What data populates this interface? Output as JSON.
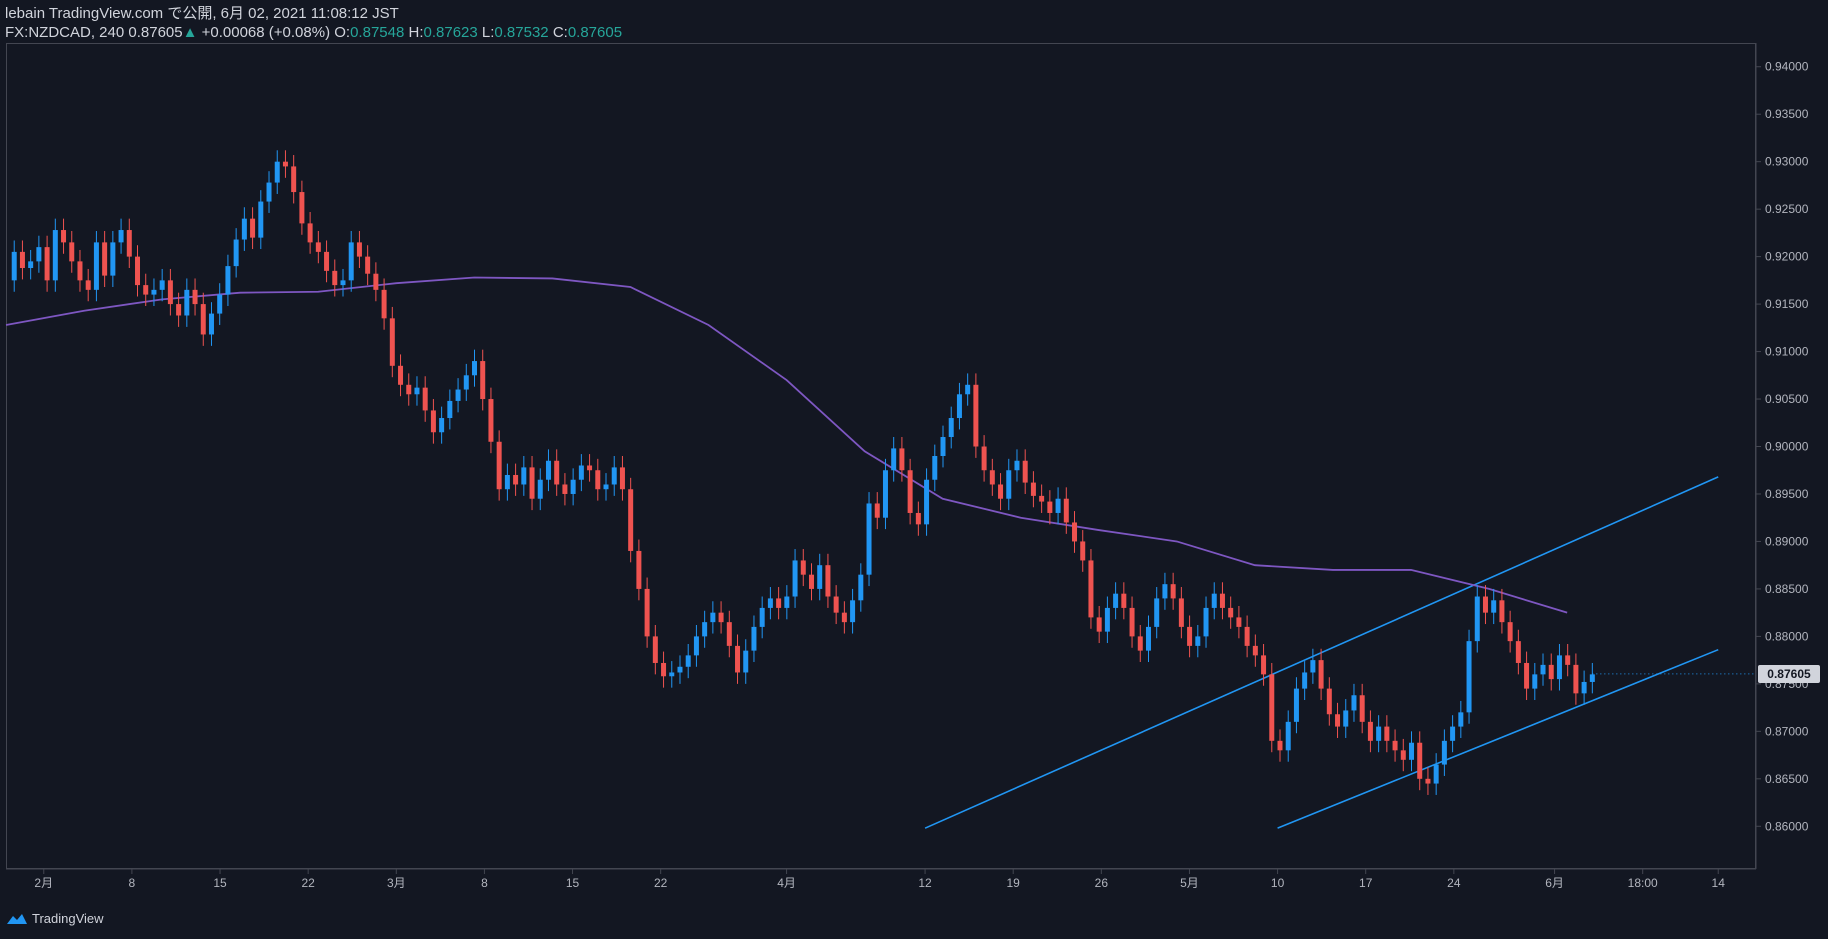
{
  "header": {
    "publisher_line": "lebain TradingView.com で公開, 6月 02, 2021 11:08:12 JST",
    "symbol": "FX:NZDCAD, 240",
    "last": "0.87605",
    "arrow": "▲",
    "change": "+0.00068 (+0.08%)",
    "o_label": "O:",
    "o_value": "0.87548",
    "h_label": "H:",
    "h_value": "0.87623",
    "l_label": "L:",
    "l_value": "0.87532",
    "c_label": "C:",
    "c_value": "0.87605"
  },
  "footer": {
    "brand": "TradingView",
    "icon": "tradingview-logo-icon"
  },
  "colors": {
    "background": "#131722",
    "up": "#2196f3",
    "down": "#ef5350",
    "ma": "#7e57c2",
    "trendline": "#2196f3",
    "axis_text": "#b2b5be",
    "border": "#434651"
  },
  "chart_data": {
    "type": "candlestick",
    "symbol": "FX:NZDCAD",
    "interval": "240",
    "last_price": 0.87605,
    "last_price_label": "0.87605",
    "ylim": [
      0.8555,
      0.9425
    ],
    "y_ticks": [
      "0.86000",
      "0.86500",
      "0.87000",
      "0.87500",
      "0.88000",
      "0.88500",
      "0.89000",
      "0.89500",
      "0.90000",
      "0.90500",
      "0.91000",
      "0.91500",
      "0.92000",
      "0.92500",
      "0.93000",
      "0.93500",
      "0.94000"
    ],
    "x_ticks": [
      {
        "label": "2月",
        "date": "2021-02-01"
      },
      {
        "label": "8",
        "date": "2021-02-08"
      },
      {
        "label": "15",
        "date": "2021-02-15"
      },
      {
        "label": "22",
        "date": "2021-02-22"
      },
      {
        "label": "3月",
        "date": "2021-03-01"
      },
      {
        "label": "8",
        "date": "2021-03-08"
      },
      {
        "label": "15",
        "date": "2021-03-15"
      },
      {
        "label": "22",
        "date": "2021-03-22"
      },
      {
        "label": "4月",
        "date": "2021-04-01"
      },
      {
        "label": "12",
        "date": "2021-04-12"
      },
      {
        "label": "19",
        "date": "2021-04-19"
      },
      {
        "label": "26",
        "date": "2021-04-26"
      },
      {
        "label": "5月",
        "date": "2021-05-03"
      },
      {
        "label": "10",
        "date": "2021-05-10"
      },
      {
        "label": "17",
        "date": "2021-05-17"
      },
      {
        "label": "24",
        "date": "2021-05-24"
      },
      {
        "label": "6月",
        "date": "2021-06-01"
      },
      {
        "label": "18:00",
        "date": "2021-06-08"
      },
      {
        "label": "14",
        "date": "2021-06-14"
      }
    ],
    "price_path": [
      [
        "2021-01-29",
        0.9175
      ],
      [
        "2021-01-30",
        0.9205
      ],
      [
        "2021-01-31",
        0.9188
      ],
      [
        "2021-02-01",
        0.9195
      ],
      [
        "2021-02-02",
        0.921
      ],
      [
        "2021-02-03",
        0.9175
      ],
      [
        "2021-02-04",
        0.9228
      ],
      [
        "2021-02-05",
        0.9215
      ],
      [
        "2021-02-06",
        0.9195
      ],
      [
        "2021-02-07",
        0.9175
      ],
      [
        "2021-02-08",
        0.9165
      ],
      [
        "2021-02-09",
        0.9215
      ],
      [
        "2021-02-10",
        0.918
      ],
      [
        "2021-02-11",
        0.9215
      ],
      [
        "2021-02-12",
        0.9228
      ],
      [
        "2021-02-13",
        0.92
      ],
      [
        "2021-02-14",
        0.917
      ],
      [
        "2021-02-15",
        0.916
      ],
      [
        "2021-02-16",
        0.9165
      ],
      [
        "2021-02-17",
        0.9175
      ],
      [
        "2021-02-18",
        0.915
      ],
      [
        "2021-02-19",
        0.9138
      ],
      [
        "2021-02-20",
        0.9165
      ],
      [
        "2021-02-21",
        0.915
      ],
      [
        "2021-02-22",
        0.9118
      ],
      [
        "2021-02-23",
        0.914
      ],
      [
        "2021-02-24",
        0.916
      ],
      [
        "2021-02-25",
        0.919
      ],
      [
        "2021-02-26",
        0.9218
      ],
      [
        "2021-02-27",
        0.924
      ],
      [
        "2021-02-28",
        0.922
      ],
      [
        "2021-03-01",
        0.9258
      ],
      [
        "2021-03-02",
        0.9278
      ],
      [
        "2021-03-03",
        0.93
      ],
      [
        "2021-03-04",
        0.9295
      ],
      [
        "2021-03-05",
        0.9268
      ],
      [
        "2021-03-06",
        0.9235
      ],
      [
        "2021-03-07",
        0.9215
      ],
      [
        "2021-03-08",
        0.9205
      ],
      [
        "2021-03-09",
        0.9185
      ],
      [
        "2021-03-10",
        0.917
      ],
      [
        "2021-03-11",
        0.9175
      ],
      [
        "2021-03-12",
        0.9215
      ],
      [
        "2021-03-13",
        0.92
      ],
      [
        "2021-03-14",
        0.9182
      ],
      [
        "2021-03-15",
        0.9165
      ],
      [
        "2021-03-16",
        0.9135
      ],
      [
        "2021-03-17",
        0.9085
      ],
      [
        "2021-03-18",
        0.9065
      ],
      [
        "2021-03-19",
        0.9055
      ],
      [
        "2021-03-20",
        0.9062
      ],
      [
        "2021-03-21",
        0.9038
      ],
      [
        "2021-03-22",
        0.9015
      ],
      [
        "2021-03-23",
        0.903
      ],
      [
        "2021-03-24",
        0.9048
      ],
      [
        "2021-03-25",
        0.906
      ],
      [
        "2021-03-26",
        0.9075
      ],
      [
        "2021-03-27",
        0.909
      ],
      [
        "2021-03-28",
        0.905
      ],
      [
        "2021-03-29",
        0.9005
      ],
      [
        "2021-03-30",
        0.8955
      ],
      [
        "2021-03-31",
        0.897
      ],
      [
        "2021-04-01",
        0.896
      ],
      [
        "2021-04-02",
        0.8978
      ],
      [
        "2021-04-03",
        0.8945
      ],
      [
        "2021-04-04",
        0.8965
      ],
      [
        "2021-04-05",
        0.8985
      ],
      [
        "2021-04-06",
        0.896
      ],
      [
        "2021-04-07",
        0.895
      ],
      [
        "2021-04-08",
        0.8965
      ],
      [
        "2021-04-09",
        0.898
      ],
      [
        "2021-04-10",
        0.8975
      ],
      [
        "2021-04-11",
        0.8955
      ],
      [
        "2021-04-12",
        0.896
      ],
      [
        "2021-04-13",
        0.8978
      ],
      [
        "2021-04-14",
        0.8955
      ],
      [
        "2021-04-15",
        0.889
      ],
      [
        "2021-04-16",
        0.885
      ],
      [
        "2021-04-17",
        0.88
      ],
      [
        "2021-04-18",
        0.8772
      ],
      [
        "2021-04-19",
        0.8758
      ],
      [
        "2021-04-20",
        0.8762
      ],
      [
        "2021-04-21",
        0.8768
      ],
      [
        "2021-04-22",
        0.878
      ],
      [
        "2021-04-23",
        0.88
      ],
      [
        "2021-04-24",
        0.8815
      ],
      [
        "2021-04-25",
        0.8825
      ],
      [
        "2021-04-26",
        0.8815
      ],
      [
        "2021-04-27",
        0.879
      ],
      [
        "2021-04-28",
        0.8762
      ],
      [
        "2021-04-29",
        0.8785
      ],
      [
        "2021-04-30",
        0.881
      ],
      [
        "2021-05-01",
        0.883
      ],
      [
        "2021-05-02",
        0.884
      ],
      [
        "2021-05-03",
        0.883
      ],
      [
        "2021-05-04",
        0.8842
      ],
      [
        "2021-05-05",
        0.888
      ],
      [
        "2021-05-06",
        0.8865
      ],
      [
        "2021-05-07",
        0.885
      ],
      [
        "2021-05-08",
        0.8875
      ],
      [
        "2021-05-09",
        0.8842
      ],
      [
        "2021-05-10",
        0.8825
      ],
      [
        "2021-05-11",
        0.8815
      ],
      [
        "2021-05-12",
        0.8838
      ],
      [
        "2021-05-13",
        0.8865
      ],
      [
        "2021-05-14",
        0.894
      ],
      [
        "2021-05-15",
        0.8925
      ],
      [
        "2021-05-16",
        0.8975
      ],
      [
        "2021-05-17",
        0.8998
      ],
      [
        "2021-05-18",
        0.8975
      ],
      [
        "2021-05-19",
        0.893
      ],
      [
        "2021-05-20",
        0.8918
      ],
      [
        "2021-05-21",
        0.8965
      ],
      [
        "2021-05-22",
        0.899
      ],
      [
        "2021-05-23",
        0.901
      ],
      [
        "2021-05-24",
        0.903
      ],
      [
        "2021-05-25",
        0.9055
      ],
      [
        "2021-05-26",
        0.9065
      ],
      [
        "2021-05-27",
        0.9
      ],
      [
        "2021-05-28",
        0.8975
      ],
      [
        "2021-05-29",
        0.896
      ],
      [
        "2021-05-30",
        0.8945
      ],
      [
        "2021-05-31",
        0.8975
      ],
      [
        "2021-06-01",
        0.8985
      ]
    ],
    "price_path_2": [
      [
        "2021-06-01",
        0.8985
      ],
      [
        "2021-06-02",
        0.8962
      ],
      [
        "2021-06-03",
        0.8948
      ],
      [
        "2021-06-04",
        0.8942
      ],
      [
        "2021-06-05",
        0.893
      ],
      [
        "2021-06-06",
        0.8945
      ],
      [
        "2021-06-07",
        0.892
      ],
      [
        "2021-06-08",
        0.89
      ],
      [
        "2021-06-09",
        0.888
      ],
      [
        "2021-06-10",
        0.882
      ],
      [
        "2021-06-11",
        0.8805
      ],
      [
        "2021-06-12",
        0.883
      ],
      [
        "2021-06-13",
        0.8845
      ],
      [
        "2021-06-14",
        0.883
      ],
      [
        "2021-06-15",
        0.88
      ],
      [
        "2021-06-16",
        0.8785
      ],
      [
        "2021-06-17",
        0.881
      ],
      [
        "2021-06-18",
        0.884
      ],
      [
        "2021-06-19",
        0.8855
      ],
      [
        "2021-06-20",
        0.884
      ],
      [
        "2021-06-21",
        0.881
      ],
      [
        "2021-06-22",
        0.879
      ],
      [
        "2021-06-23",
        0.88
      ],
      [
        "2021-06-24",
        0.883
      ],
      [
        "2021-06-25",
        0.8845
      ],
      [
        "2021-06-26",
        0.883
      ],
      [
        "2021-06-27",
        0.882
      ],
      [
        "2021-06-28",
        0.881
      ],
      [
        "2021-06-29",
        0.879
      ],
      [
        "2021-06-30",
        0.878
      ],
      [
        "2021-07-01",
        0.876
      ],
      [
        "2021-07-02",
        0.869
      ],
      [
        "2021-07-03",
        0.868
      ],
      [
        "2021-07-04",
        0.871
      ],
      [
        "2021-07-05",
        0.8745
      ],
      [
        "2021-07-06",
        0.8762
      ],
      [
        "2021-07-07",
        0.8775
      ],
      [
        "2021-07-08",
        0.8745
      ],
      [
        "2021-07-09",
        0.8718
      ],
      [
        "2021-07-10",
        0.8705
      ],
      [
        "2021-07-11",
        0.8722
      ],
      [
        "2021-07-12",
        0.8738
      ],
      [
        "2021-07-13",
        0.871
      ],
      [
        "2021-07-14",
        0.869
      ],
      [
        "2021-07-15",
        0.8705
      ],
      [
        "2021-07-16",
        0.869
      ],
      [
        "2021-07-17",
        0.868
      ],
      [
        "2021-07-18",
        0.867
      ],
      [
        "2021-07-19",
        0.8688
      ],
      [
        "2021-07-20",
        0.865
      ],
      [
        "2021-07-21",
        0.8645
      ],
      [
        "2021-07-22",
        0.8665
      ],
      [
        "2021-07-23",
        0.869
      ],
      [
        "2021-07-24",
        0.8705
      ],
      [
        "2021-07-25",
        0.872
      ],
      [
        "2021-07-26",
        0.8795
      ],
      [
        "2021-07-27",
        0.8842
      ],
      [
        "2021-07-28",
        0.8825
      ],
      [
        "2021-07-29",
        0.8838
      ],
      [
        "2021-07-30",
        0.8815
      ],
      [
        "2021-07-31",
        0.8795
      ],
      [
        "2021-08-01",
        0.8772
      ],
      [
        "2021-08-02",
        0.8745
      ],
      [
        "2021-08-03",
        0.876
      ],
      [
        "2021-08-04",
        0.877
      ],
      [
        "2021-08-05",
        0.8755
      ],
      [
        "2021-08-06",
        0.878
      ],
      [
        "2021-08-07",
        0.877
      ],
      [
        "2021-08-08",
        0.874
      ],
      [
        "2021-08-09",
        0.8752
      ],
      [
        "2021-08-10",
        0.876
      ]
    ],
    "moving_average": {
      "color": "#7e57c2",
      "points": [
        [
          0,
          0.9128
        ],
        [
          0.05,
          0.9143
        ],
        [
          0.1,
          0.9155
        ],
        [
          0.15,
          0.9162
        ],
        [
          0.2,
          0.9163
        ],
        [
          0.25,
          0.9172
        ],
        [
          0.3,
          0.9178
        ],
        [
          0.35,
          0.9177
        ],
        [
          0.4,
          0.9168
        ],
        [
          0.45,
          0.9128
        ],
        [
          0.5,
          0.907
        ],
        [
          0.55,
          0.8995
        ],
        [
          0.6,
          0.8945
        ],
        [
          0.65,
          0.8925
        ],
        [
          0.7,
          0.8912
        ],
        [
          0.75,
          0.89
        ],
        [
          0.8,
          0.8875
        ],
        [
          0.85,
          0.887
        ],
        [
          0.9,
          0.887
        ],
        [
          0.95,
          0.885
        ],
        [
          1.0,
          0.8825
        ]
      ]
    },
    "trendlines": [
      {
        "from": [
          "2021-04-12",
          0.8598
        ],
        "to": [
          "2021-06-14",
          0.8968
        ]
      },
      {
        "from": [
          "2021-05-10",
          0.8598
        ],
        "to": [
          "2021-06-14",
          0.8786
        ]
      }
    ]
  }
}
